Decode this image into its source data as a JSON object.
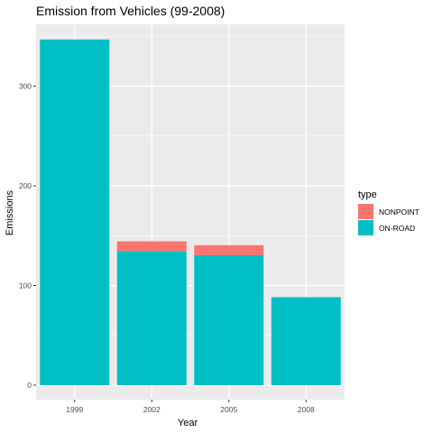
{
  "chart_data": {
    "type": "bar",
    "stacked": true,
    "title": "Emission from Vehicles (99-2008)",
    "xlabel": "Year",
    "ylabel": "Emissions",
    "categories": [
      "1999",
      "2002",
      "2005",
      "2008"
    ],
    "series": [
      {
        "name": "NONPOINT",
        "color": "#F8766D",
        "values": [
          0,
          10,
          10,
          0
        ]
      },
      {
        "name": "ON-ROAD",
        "color": "#00BFC4",
        "values": [
          346.8,
          134.3,
          130.4,
          88.3
        ]
      }
    ],
    "ylim": [
      0,
      362
    ],
    "yticks": [
      0,
      100,
      200,
      300
    ],
    "legend": {
      "title": "type",
      "placement": "right"
    },
    "grid": true,
    "panel_background": "#EBEBEB"
  }
}
